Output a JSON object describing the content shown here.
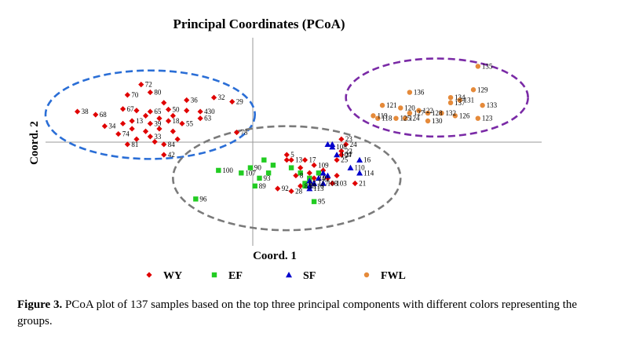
{
  "chart_data": {
    "type": "scatter",
    "title": "Principal Coordinates (PCoA)",
    "xlabel": "Coord. 1",
    "ylabel": "Coord. 2",
    "xlim": [
      -0.53,
      0.56
    ],
    "ylim": [
      -0.2,
      0.2
    ],
    "series": [
      {
        "name": "WY",
        "color": "#e00000",
        "marker": "diamond",
        "points": [
          {
            "x": -0.32,
            "y": 0.11,
            "label": "72"
          },
          {
            "x": -0.35,
            "y": 0.09,
            "label": "70"
          },
          {
            "x": -0.3,
            "y": 0.095,
            "label": "80"
          },
          {
            "x": -0.22,
            "y": 0.08,
            "label": "36"
          },
          {
            "x": -0.16,
            "y": 0.085,
            "label": "32"
          },
          {
            "x": -0.12,
            "y": 0.077,
            "label": "29"
          },
          {
            "x": -0.46,
            "y": 0.058,
            "label": "38"
          },
          {
            "x": -0.42,
            "y": 0.052,
            "label": "68"
          },
          {
            "x": -0.36,
            "y": 0.063,
            "label": "67"
          },
          {
            "x": -0.3,
            "y": 0.058,
            "label": "65"
          },
          {
            "x": -0.26,
            "y": 0.062,
            "label": "50"
          },
          {
            "x": -0.19,
            "y": 0.058,
            "label": "430"
          },
          {
            "x": -0.19,
            "y": 0.045,
            "label": "63"
          },
          {
            "x": -0.4,
            "y": 0.03,
            "label": "34"
          },
          {
            "x": -0.34,
            "y": 0.04,
            "label": "13"
          },
          {
            "x": -0.3,
            "y": 0.035,
            "label": "39"
          },
          {
            "x": -0.26,
            "y": 0.04,
            "label": "18"
          },
          {
            "x": -0.23,
            "y": 0.035,
            "label": "55"
          },
          {
            "x": -0.37,
            "y": 0.015,
            "label": "74"
          },
          {
            "x": -0.3,
            "y": 0.01,
            "label": "33"
          },
          {
            "x": -0.35,
            "y": -0.005,
            "label": "81"
          },
          {
            "x": -0.27,
            "y": -0.005,
            "label": "84"
          },
          {
            "x": -0.27,
            "y": -0.025,
            "label": "42"
          },
          {
            "x": -0.11,
            "y": 0.018,
            "label": "78"
          },
          {
            "x": -0.33,
            "y": 0.06
          },
          {
            "x": -0.31,
            "y": 0.05
          },
          {
            "x": -0.28,
            "y": 0.045
          },
          {
            "x": -0.25,
            "y": 0.05
          },
          {
            "x": -0.34,
            "y": 0.025
          },
          {
            "x": -0.31,
            "y": 0.02
          },
          {
            "x": -0.28,
            "y": 0.025
          },
          {
            "x": -0.25,
            "y": 0.02
          },
          {
            "x": -0.33,
            "y": 0.005
          },
          {
            "x": -0.29,
            "y": 0.0
          },
          {
            "x": -0.24,
            "y": 0.005
          },
          {
            "x": -0.22,
            "y": 0.06
          },
          {
            "x": -0.36,
            "y": 0.035
          },
          {
            "x": -0.27,
            "y": 0.075
          },
          {
            "x": 0.0,
            "y": -0.025,
            "label": "5"
          },
          {
            "x": 0.01,
            "y": -0.035,
            "label": "13"
          },
          {
            "x": 0.04,
            "y": -0.035,
            "label": "17"
          },
          {
            "x": 0.06,
            "y": -0.045,
            "label": "109"
          },
          {
            "x": 0.02,
            "y": -0.065,
            "label": "8"
          },
          {
            "x": 0.06,
            "y": -0.07,
            "label": "24"
          },
          {
            "x": 0.03,
            "y": -0.085,
            "label": "83"
          },
          {
            "x": -0.02,
            "y": -0.09,
            "label": "92"
          },
          {
            "x": 0.01,
            "y": -0.095,
            "label": "28"
          },
          {
            "x": 0.12,
            "y": -0.025,
            "label": "27"
          },
          {
            "x": 0.11,
            "y": -0.035,
            "label": "25"
          },
          {
            "x": 0.12,
            "y": 0.005,
            "label": "23"
          },
          {
            "x": 0.13,
            "y": -0.005,
            "label": "24"
          },
          {
            "x": 0.12,
            "y": -0.018,
            "label": "22"
          },
          {
            "x": 0.15,
            "y": -0.08,
            "label": "21"
          },
          {
            "x": 0.1,
            "y": -0.08,
            "label": "103"
          },
          {
            "x": 0.0,
            "y": -0.035
          },
          {
            "x": 0.03,
            "y": -0.05
          },
          {
            "x": 0.05,
            "y": -0.06
          },
          {
            "x": 0.08,
            "y": -0.055
          },
          {
            "x": 0.09,
            "y": -0.07
          },
          {
            "x": 0.11,
            "y": -0.065
          }
        ]
      },
      {
        "name": "EF",
        "color": "#22cc22",
        "marker": "square",
        "points": [
          {
            "x": -0.15,
            "y": -0.055,
            "label": "100"
          },
          {
            "x": -0.1,
            "y": -0.06,
            "label": "107"
          },
          {
            "x": -0.06,
            "y": -0.07,
            "label": "93"
          },
          {
            "x": -0.08,
            "y": -0.05,
            "label": "90"
          },
          {
            "x": -0.07,
            "y": -0.085,
            "label": "89"
          },
          {
            "x": 0.04,
            "y": -0.08,
            "label": "97"
          },
          {
            "x": 0.04,
            "y": -0.085,
            "label": "98"
          },
          {
            "x": 0.06,
            "y": -0.115,
            "label": "95"
          },
          {
            "x": -0.2,
            "y": -0.11,
            "label": "96"
          },
          {
            "x": -0.05,
            "y": -0.035
          },
          {
            "x": -0.03,
            "y": -0.045
          },
          {
            "x": -0.04,
            "y": -0.06
          },
          {
            "x": 0.01,
            "y": -0.05
          },
          {
            "x": 0.03,
            "y": -0.06
          },
          {
            "x": 0.05,
            "y": -0.07
          },
          {
            "x": 0.07,
            "y": -0.06
          }
        ]
      },
      {
        "name": "SF",
        "color": "#0000cc",
        "marker": "triangle",
        "points": [
          {
            "x": 0.1,
            "y": -0.01,
            "label": "108"
          },
          {
            "x": 0.11,
            "y": -0.025,
            "label": "104"
          },
          {
            "x": 0.16,
            "y": -0.035,
            "label": "16"
          },
          {
            "x": 0.14,
            "y": -0.05,
            "label": "110"
          },
          {
            "x": 0.16,
            "y": -0.06,
            "label": "114"
          },
          {
            "x": 0.07,
            "y": -0.07,
            "label": "91"
          },
          {
            "x": 0.06,
            "y": -0.08,
            "label": "117"
          },
          {
            "x": 0.08,
            "y": -0.08,
            "label": "108"
          },
          {
            "x": 0.05,
            "y": -0.09,
            "label": "113"
          },
          {
            "x": 0.05,
            "y": -0.085,
            "label": "116"
          },
          {
            "x": 0.09,
            "y": -0.005
          },
          {
            "x": 0.1,
            "y": -0.005
          },
          {
            "x": 0.08,
            "y": -0.06
          },
          {
            "x": 0.09,
            "y": -0.065
          },
          {
            "x": 0.05,
            "y": -0.075
          },
          {
            "x": 0.06,
            "y": -0.08
          }
        ]
      },
      {
        "name": "FWL",
        "color": "#e58a3a",
        "marker": "circle",
        "points": [
          {
            "x": 0.42,
            "y": 0.145,
            "label": "135"
          },
          {
            "x": 0.41,
            "y": 0.1,
            "label": "129"
          },
          {
            "x": 0.27,
            "y": 0.095,
            "label": "136"
          },
          {
            "x": 0.36,
            "y": 0.085,
            "label": "134"
          },
          {
            "x": 0.38,
            "y": 0.08,
            "label": "131"
          },
          {
            "x": 0.36,
            "y": 0.075,
            "label": "137"
          },
          {
            "x": 0.43,
            "y": 0.07,
            "label": "133"
          },
          {
            "x": 0.21,
            "y": 0.07,
            "label": "121"
          },
          {
            "x": 0.25,
            "y": 0.065,
            "label": "120"
          },
          {
            "x": 0.29,
            "y": 0.06,
            "label": "122"
          },
          {
            "x": 0.27,
            "y": 0.055,
            "label": "127"
          },
          {
            "x": 0.31,
            "y": 0.055,
            "label": "128"
          },
          {
            "x": 0.34,
            "y": 0.055,
            "label": "132"
          },
          {
            "x": 0.37,
            "y": 0.05,
            "label": "126"
          },
          {
            "x": 0.42,
            "y": 0.045,
            "label": "123"
          },
          {
            "x": 0.19,
            "y": 0.05,
            "label": "119"
          },
          {
            "x": 0.2,
            "y": 0.045,
            "label": "118"
          },
          {
            "x": 0.24,
            "y": 0.045,
            "label": "125"
          },
          {
            "x": 0.26,
            "y": 0.045,
            "label": "124"
          },
          {
            "x": 0.31,
            "y": 0.04,
            "label": "130"
          }
        ]
      }
    ],
    "ellipses": [
      {
        "group": "WY",
        "color": "#2a6ed6",
        "cx": -0.3,
        "cy": 0.052,
        "rx": 0.23,
        "ry": 0.085
      },
      {
        "group": "FWL",
        "color": "#7a2aa6",
        "cx": 0.33,
        "cy": 0.085,
        "rx": 0.2,
        "ry": 0.075
      },
      {
        "group": "EF+SF",
        "color": "#7a7a7a",
        "cx": 0.0,
        "cy": -0.07,
        "rx": 0.25,
        "ry": 0.1
      }
    ],
    "legend": {
      "placement": "bottom"
    },
    "grid": false
  },
  "caption": {
    "label": "Figure 3.",
    "text": " PCoA plot of 137 samples based on the top three principal components with different colors representing the groups."
  }
}
